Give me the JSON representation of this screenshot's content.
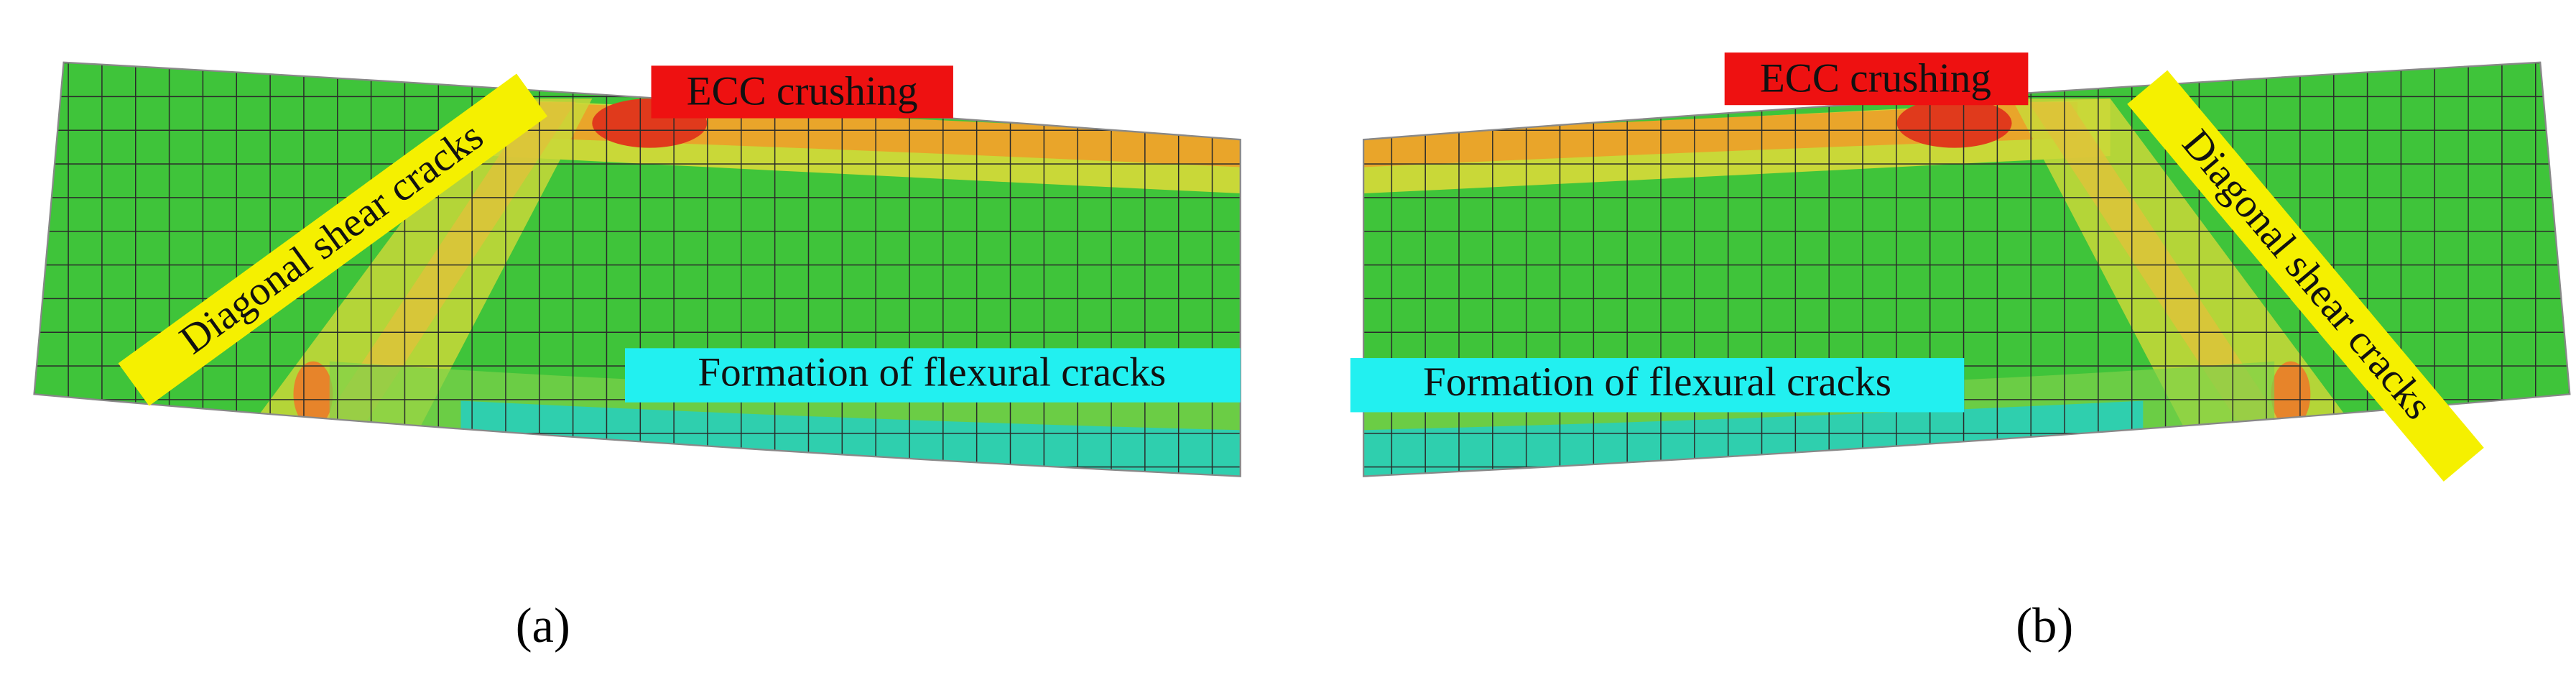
{
  "panels": [
    {
      "caption": "(a)",
      "crushing": "ECC crushing",
      "shear": "Diagonal shear cracks",
      "flexural": "Formation of flexural cracks"
    },
    {
      "caption": "(b)",
      "crushing": "ECC crushing",
      "shear": "Diagonal shear cracks",
      "flexural": "Formation of flexural cracks"
    }
  ]
}
